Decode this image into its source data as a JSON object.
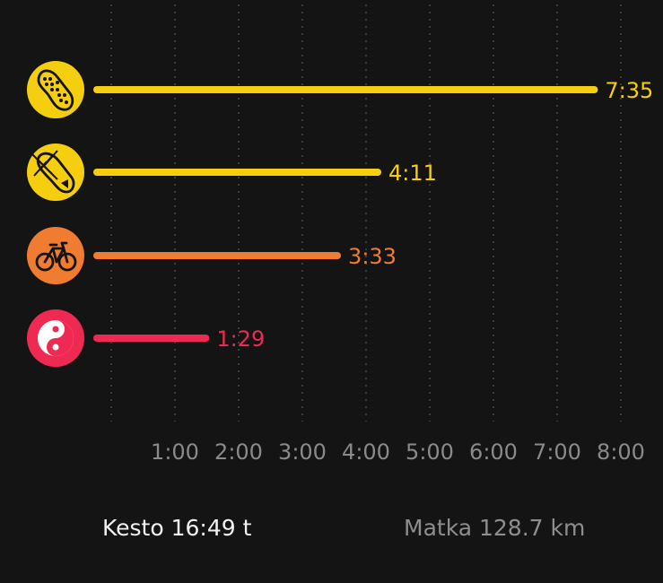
{
  "chart_data": {
    "type": "bar",
    "orientation": "horizontal",
    "unit": "hours:minutes",
    "categories": [
      "walking",
      "running",
      "cycling",
      "yoga"
    ],
    "icons": [
      "footprint-icon",
      "running-shoe-icon",
      "bicycle-icon",
      "yin-yang-icon"
    ],
    "values_minutes": [
      455,
      251,
      213,
      89
    ],
    "value_labels": [
      "7:35",
      "4:11",
      "3:33",
      "1:29"
    ],
    "colors": [
      "#f5cf0f",
      "#f5cf0f",
      "#f07c32",
      "#ef2a52"
    ],
    "xlim_minutes": [
      0,
      480
    ],
    "x_ticks": [
      "1:00",
      "2:00",
      "3:00",
      "4:00",
      "5:00",
      "6:00",
      "7:00",
      "8:00"
    ],
    "grid": "vertical dotted"
  },
  "summary": {
    "duration": "Kesto 16:49 t",
    "distance": "Matka 128.7 km"
  }
}
